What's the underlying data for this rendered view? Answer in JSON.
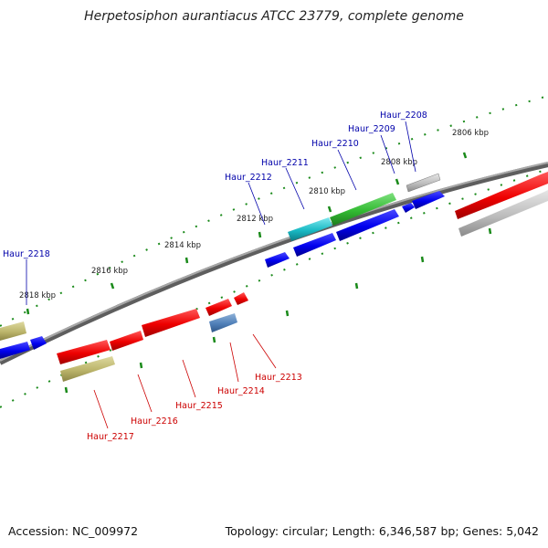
{
  "title": "Herpetosiphon aurantiacus ATCC 23779, complete genome",
  "footer": {
    "accession": "Accession: NC_009972",
    "topology": "Topology: circular; Length: 6,346,587 bp; Genes: 5,042"
  },
  "ruler_labels": [
    "2806 kbp",
    "2808 kbp",
    "2810 kbp",
    "2812 kbp",
    "2814 kbp",
    "2816 kbp",
    "2818 kbp"
  ],
  "gene_labels_forward": [
    "Haur_2208",
    "Haur_2209",
    "Haur_2210",
    "Haur_2211",
    "Haur_2212",
    "Haur_2218"
  ],
  "gene_labels_reverse": [
    "Haur_2213",
    "Haur_2214",
    "Haur_2215",
    "Haur_2216",
    "Haur_2217"
  ],
  "colors": {
    "forward_label": "#0000aa",
    "reverse_label": "#cc0000",
    "backbone": "#808080",
    "ruler_dots": "#1a8a1a"
  }
}
